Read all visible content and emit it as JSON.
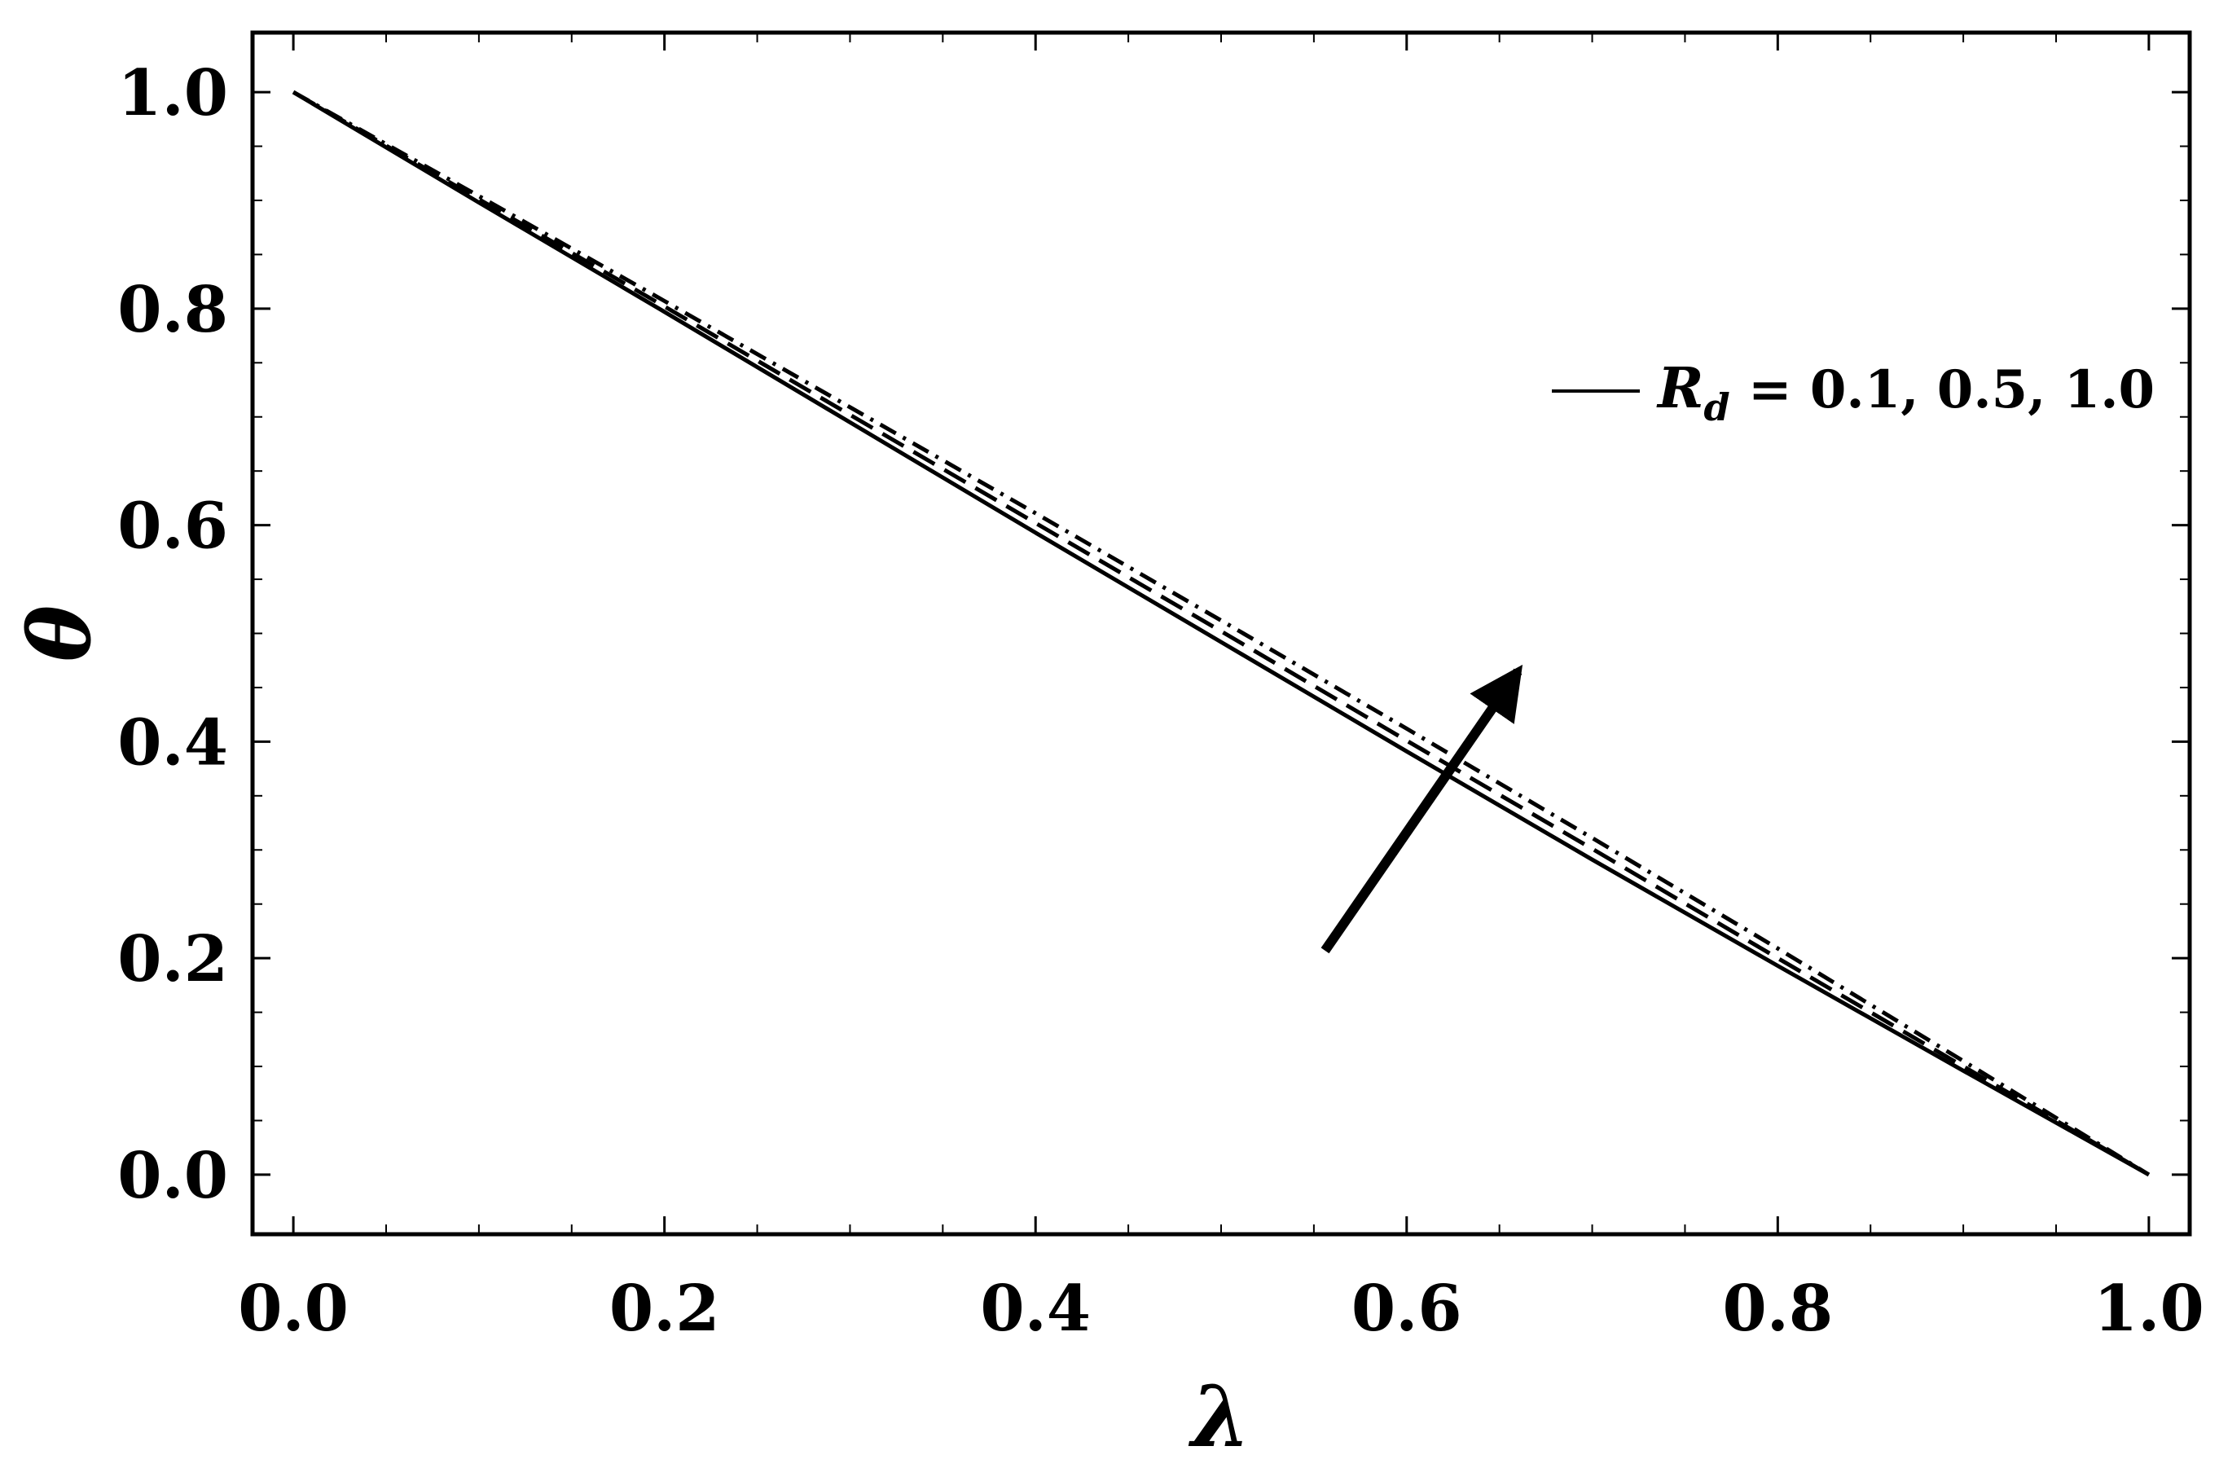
{
  "chart_data": {
    "type": "line",
    "title": "",
    "xlabel": "λ",
    "ylabel": "θ",
    "ylabel_accent": "˘",
    "xlim": [
      -0.022,
      1.022
    ],
    "ylim": [
      -0.055,
      1.055
    ],
    "x_ticks": [
      {
        "value": 0.0,
        "label": "0.0"
      },
      {
        "value": 0.2,
        "label": "0.2"
      },
      {
        "value": 0.4,
        "label": "0.4"
      },
      {
        "value": 0.6,
        "label": "0.6"
      },
      {
        "value": 0.8,
        "label": "0.8"
      },
      {
        "value": 1.0,
        "label": "1.0"
      }
    ],
    "y_ticks": [
      {
        "value": 0.0,
        "label": "0.0"
      },
      {
        "value": 0.2,
        "label": "0.2"
      },
      {
        "value": 0.4,
        "label": "0.4"
      },
      {
        "value": 0.6,
        "label": "0.6"
      },
      {
        "value": 0.8,
        "label": "0.8"
      },
      {
        "value": 1.0,
        "label": "1.0"
      }
    ],
    "x": [
      0.0,
      0.1,
      0.2,
      0.3,
      0.4,
      0.5,
      0.6,
      0.7,
      0.8,
      0.9,
      1.0
    ],
    "series": [
      {
        "dash": "solid",
        "values": [
          1.0,
          0.898,
          0.797,
          0.695,
          0.593,
          0.492,
          0.391,
          0.291,
          0.193,
          0.096,
          0.0
        ]
      },
      {
        "dash": "dashed",
        "values": [
          1.0,
          0.901,
          0.802,
          0.702,
          0.602,
          0.502,
          0.401,
          0.301,
          0.2,
          0.1,
          0.0
        ]
      },
      {
        "dash": "dotdash",
        "values": [
          1.0,
          0.904,
          0.807,
          0.709,
          0.611,
          0.512,
          0.412,
          0.311,
          0.209,
          0.105,
          0.0
        ]
      }
    ],
    "legend": {
      "position": "top-right",
      "symbol": "R",
      "subscript": "d",
      "text": " = 0.1, 0.5, 1.0"
    },
    "annotation": {
      "type": "arrow",
      "from": [
        0.556,
        0.207
      ],
      "to": [
        0.66,
        0.465
      ]
    },
    "grid": false
  }
}
